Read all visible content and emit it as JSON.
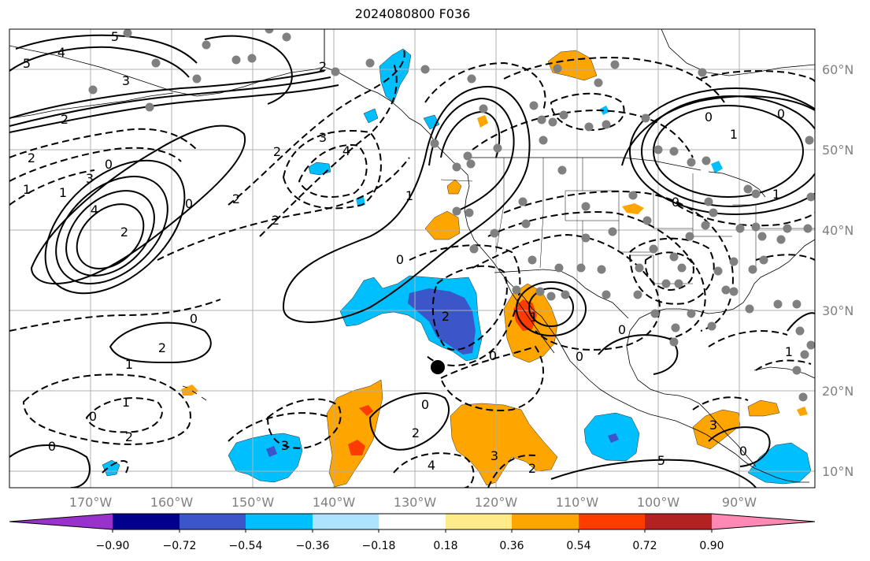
{
  "title": "2024080800 F036",
  "colors": {
    "land_fill": "#ffffff",
    "ocean_fill": "#ffffff",
    "grid": "#b0b0b0",
    "contour": "#000000",
    "station": "#808080",
    "axis_label": "#808080"
  },
  "longitude_labels": [
    "170°W",
    "160°W",
    "150°W",
    "140°W",
    "130°W",
    "120°W",
    "110°W",
    "100°W",
    "90°W"
  ],
  "latitude_labels": [
    "60°N",
    "50°N",
    "40°N",
    "30°N",
    "20°N",
    "10°N"
  ],
  "colorbar": {
    "tick_labels": [
      "−0.90",
      "−0.72",
      "−0.54",
      "−0.36",
      "−0.18",
      "0.18",
      "0.36",
      "0.54",
      "0.72",
      "0.90"
    ],
    "bins": [
      {
        "color": "#9932cc"
      },
      {
        "color": "#00008b"
      },
      {
        "color": "#3a56c8"
      },
      {
        "color": "#00bfff"
      },
      {
        "color": "#aee3ff"
      },
      {
        "color": "#ffffff"
      },
      {
        "color": "#ffeb8a"
      },
      {
        "color": "#ffa500"
      },
      {
        "color": "#ff3c00"
      },
      {
        "color": "#b22222"
      },
      {
        "color": "#ff89b4"
      }
    ]
  },
  "contour_labels": [
    {
      "text": "5"
    },
    {
      "text": "4"
    },
    {
      "text": "5"
    },
    {
      "text": "3"
    },
    {
      "text": "2"
    },
    {
      "text": "2"
    },
    {
      "text": "1"
    },
    {
      "text": "3"
    },
    {
      "text": "4"
    },
    {
      "text": "2"
    },
    {
      "text": "0"
    },
    {
      "text": "1"
    },
    {
      "text": "3"
    },
    {
      "text": "4"
    },
    {
      "text": "2"
    },
    {
      "text": "2"
    },
    {
      "text": "0"
    },
    {
      "text": "2"
    },
    {
      "text": "2"
    },
    {
      "text": "1"
    },
    {
      "text": "0"
    },
    {
      "text": "2"
    },
    {
      "text": "0"
    },
    {
      "text": "1"
    },
    {
      "text": "0"
    },
    {
      "text": "0"
    },
    {
      "text": "2"
    },
    {
      "text": "0"
    },
    {
      "text": "1"
    },
    {
      "text": "0"
    },
    {
      "text": "1"
    },
    {
      "text": "0"
    },
    {
      "text": "2"
    },
    {
      "text": "3"
    },
    {
      "text": "0"
    },
    {
      "text": "2"
    },
    {
      "text": "4"
    },
    {
      "text": "3"
    },
    {
      "text": "2"
    },
    {
      "text": "5"
    },
    {
      "text": "3"
    },
    {
      "text": "0"
    },
    {
      "text": "1"
    },
    {
      "text": "0"
    },
    {
      "text": "1"
    },
    {
      "text": "0"
    },
    {
      "text": "0"
    },
    {
      "text": "1"
    }
  ]
}
